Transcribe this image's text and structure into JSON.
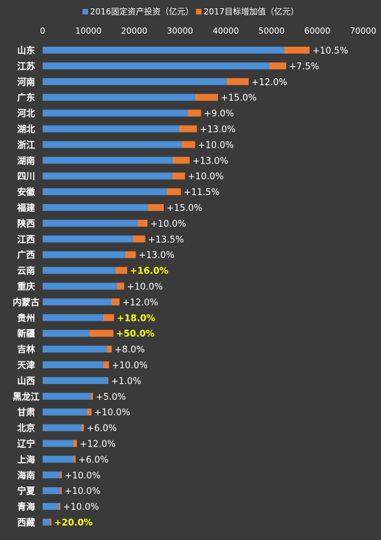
{
  "chart_data": {
    "type": "bar",
    "orientation": "horizontal",
    "stacked": true,
    "title": "",
    "xlabel": "",
    "ylabel": "",
    "xlim": [
      0,
      70000
    ],
    "xticks": [
      "0",
      "10000",
      "20000",
      "30000",
      "40000",
      "50000",
      "60000",
      "70000"
    ],
    "legend_position": "top",
    "grid": false,
    "series": [
      {
        "name": "2016固定资产投资（亿元）",
        "color": "#4a8fd8"
      },
      {
        "name": "2017目标增加值（亿元）",
        "color": "#ee7a2f"
      }
    ],
    "categories": [
      "山东",
      "江苏",
      "河南",
      "广东",
      "河北",
      "湖北",
      "浙江",
      "湖南",
      "四川",
      "安徽",
      "福建",
      "陕西",
      "江西",
      "广西",
      "云南",
      "重庆",
      "内蒙古",
      "贵州",
      "新疆",
      "吉林",
      "天津",
      "山西",
      "黑龙江",
      "甘肃",
      "北京",
      "辽宁",
      "上海",
      "海南",
      "宁夏",
      "青海",
      "西藏"
    ],
    "investment_2016": [
      52800,
      49500,
      40200,
      33300,
      31700,
      29800,
      30300,
      28400,
      28300,
      27100,
      23000,
      20800,
      19700,
      18000,
      15900,
      16200,
      15000,
      13200,
      10300,
      14000,
      13200,
      14200,
      10500,
      9700,
      8500,
      6700,
      6800,
      3800,
      3800,
      3500,
      1600
    ],
    "increase_2017": [
      5500,
      3700,
      4800,
      5000,
      2900,
      3900,
      3000,
      3700,
      2800,
      3100,
      3450,
      2100,
      2700,
      2350,
      2550,
      1600,
      1800,
      2400,
      5150,
      1100,
      1300,
      140,
      500,
      970,
      510,
      800,
      400,
      400,
      380,
      350,
      320
    ],
    "growth_labels": [
      "+10.5%",
      "+7.5%",
      "+12.0%",
      "+15.0%",
      "+9.0%",
      "+13.0%",
      "+10.0%",
      "+13.0%",
      "+10.0%",
      "+11.5%",
      "+15.0%",
      "+10.0%",
      "+13.5%",
      "+13.0%",
      "+16.0%",
      "+10.0%",
      "+12.0%",
      "+18.0%",
      "+50.0%",
      "+8.0%",
      "+10.0%",
      "+1.0%",
      "+5.0%",
      "+10.0%",
      "+6.0%",
      "+12.0%",
      "+6.0%",
      "+10.0%",
      "+10.0%",
      "+10.0%",
      "+20.0%"
    ],
    "highlight_color": "#ffff00",
    "highlighted": [
      "云南",
      "贵州",
      "新疆",
      "西藏"
    ]
  }
}
